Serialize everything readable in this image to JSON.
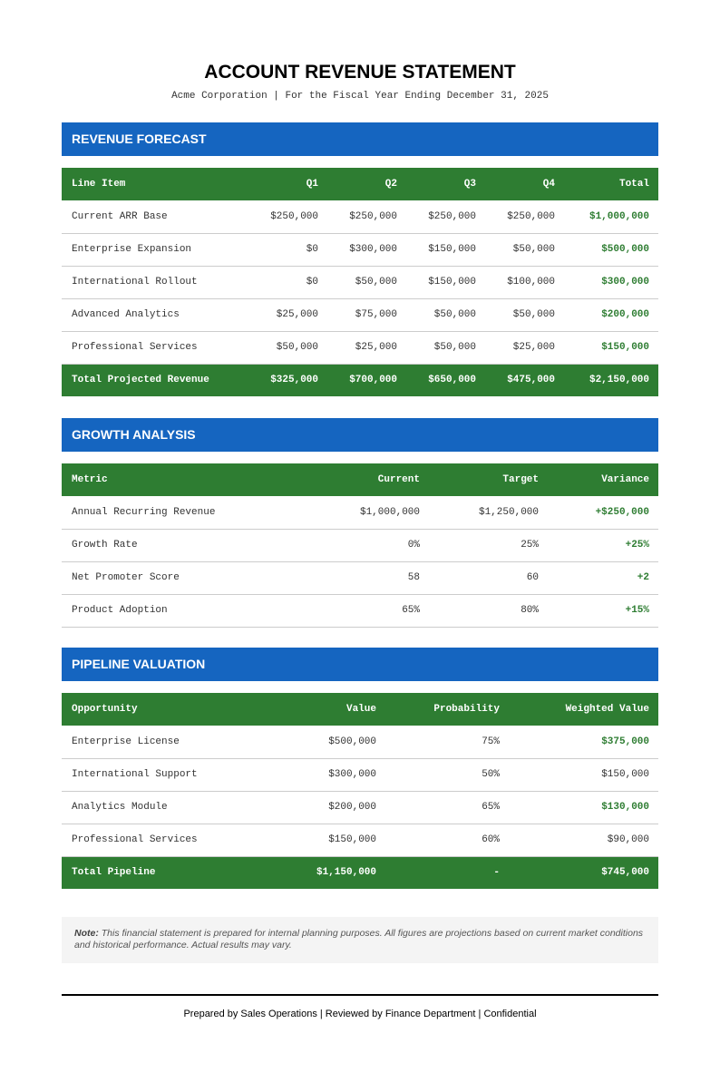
{
  "header": {
    "title": "ACCOUNT REVENUE STATEMENT",
    "subtitle": "Acme Corporation | For the Fiscal Year Ending December 31, 2025"
  },
  "sections": [
    {
      "title": "REVENUE FORECAST",
      "table": {
        "columns": [
          "Line Item",
          "Q1",
          "Q2",
          "Q3",
          "Q4",
          "Total"
        ],
        "rows": [
          [
            "Current ARR Base",
            "$250,000",
            "$250,000",
            "$250,000",
            "$250,000",
            "$1,000,000"
          ],
          [
            "Enterprise Expansion",
            "$0",
            "$300,000",
            "$150,000",
            "$50,000",
            "$500,000"
          ],
          [
            "International Rollout",
            "$0",
            "$50,000",
            "$150,000",
            "$100,000",
            "$300,000"
          ],
          [
            "Advanced Analytics",
            "$25,000",
            "$75,000",
            "$50,000",
            "$50,000",
            "$200,000"
          ],
          [
            "Professional Services",
            "$50,000",
            "$25,000",
            "$50,000",
            "$25,000",
            "$150,000"
          ]
        ],
        "total": [
          "Total Projected Revenue",
          "$325,000",
          "$700,000",
          "$650,000",
          "$475,000",
          "$2,150,000"
        ]
      }
    },
    {
      "title": "GROWTH ANALYSIS",
      "table": {
        "columns": [
          "Metric",
          "Current",
          "Target",
          "Variance"
        ],
        "rows": [
          [
            "Annual Recurring Revenue",
            "$1,000,000",
            "$1,250,000",
            "+$250,000"
          ],
          [
            "Growth Rate",
            "0%",
            "25%",
            "+25%"
          ],
          [
            "Net Promoter Score",
            "58",
            "60",
            "+2"
          ],
          [
            "Product Adoption",
            "65%",
            "80%",
            "+15%"
          ]
        ]
      }
    },
    {
      "title": "PIPELINE VALUATION",
      "table": {
        "columns": [
          "Opportunity",
          "Value",
          "Probability",
          "Weighted Value"
        ],
        "rows": [
          [
            "Enterprise License",
            "$500,000",
            "75%",
            "$375,000"
          ],
          [
            "International Support",
            "$300,000",
            "50%",
            "$150,000"
          ],
          [
            "Analytics Module",
            "$200,000",
            "65%",
            "$130,000"
          ],
          [
            "Professional Services",
            "$150,000",
            "60%",
            "$90,000"
          ]
        ],
        "total": [
          "Total Pipeline",
          "$1,150,000",
          "-",
          "$745,000"
        ]
      }
    }
  ],
  "note": {
    "label": "Note:",
    "text": "This financial statement is prepared for internal planning purposes. All figures are projections based on current market conditions and historical performance. Actual results may vary."
  },
  "footer": "Prepared by Sales Operations | Reviewed by Finance Department | Confidential"
}
